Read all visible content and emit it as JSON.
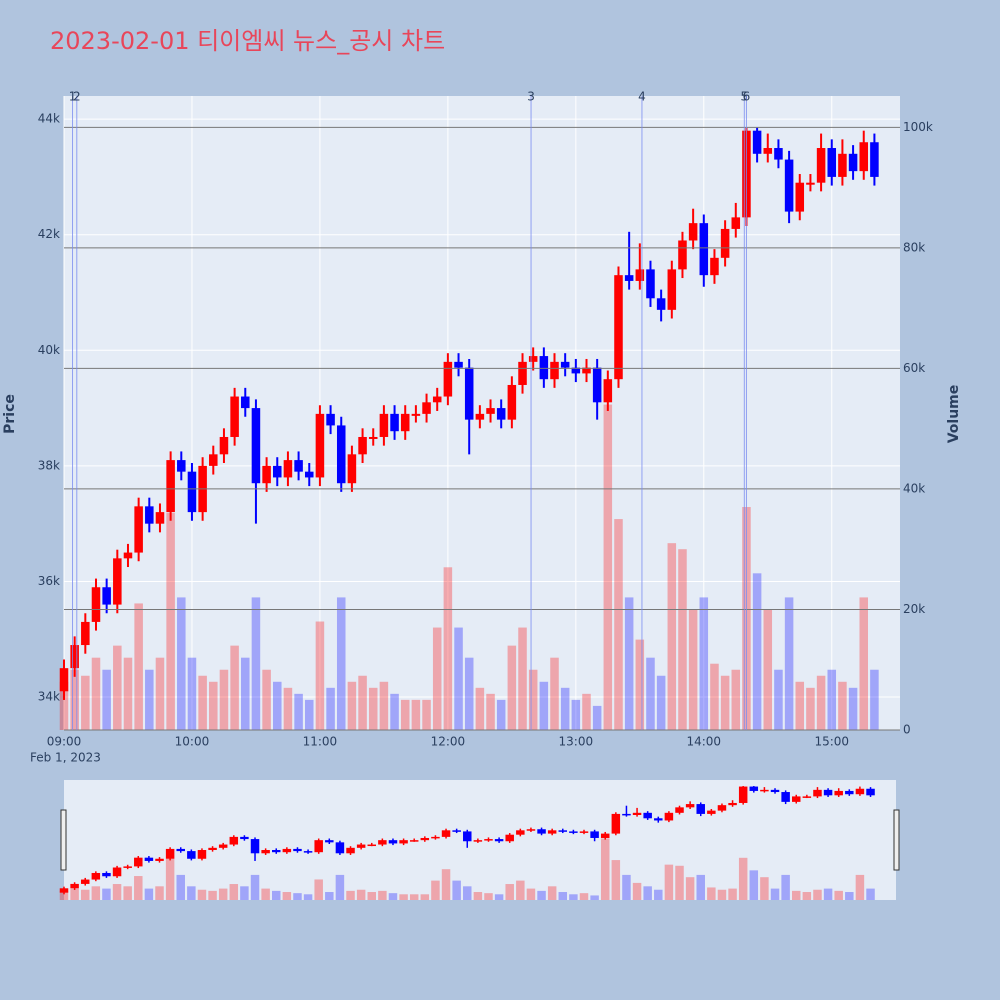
{
  "chart_data": {
    "type": "candlestick",
    "title": "2023-02-01 티이엠씨 뉴스_공시 차트",
    "y_label": "Price",
    "y2_label": "Volume",
    "x_date_label": "Feb 1, 2023",
    "increasing_color": "#ff0000",
    "decreasing_color": "#0000ff",
    "news_color": "#7b8cf0",
    "xlim": [
      "09:00",
      "15:32"
    ],
    "xticks": [
      "09:00",
      "10:00",
      "11:00",
      "12:00",
      "13:00",
      "14:00",
      "15:00"
    ],
    "ylim": [
      33430,
      44400
    ],
    "yticks": [
      {
        "value": 34000,
        "label": "34k"
      },
      {
        "value": 36000,
        "label": "36k"
      },
      {
        "value": 38000,
        "label": "38k"
      },
      {
        "value": 40000,
        "label": "40k"
      },
      {
        "value": 42000,
        "label": "42k"
      },
      {
        "value": 44000,
        "label": "44k"
      }
    ],
    "y2lim": [
      0,
      105200
    ],
    "y2ticks": [
      0,
      {
        "value": 20000,
        "label": "20k"
      },
      {
        "value": 40000,
        "label": "40k"
      },
      {
        "value": 60000,
        "label": "60k"
      },
      {
        "value": 80000,
        "label": "80k"
      },
      {
        "value": 100000,
        "label": "100k"
      }
    ],
    "x": [
      "09:00",
      "09:05",
      "09:10",
      "09:15",
      "09:20",
      "09:25",
      "09:30",
      "09:35",
      "09:40",
      "09:45",
      "09:50",
      "09:55",
      "10:00",
      "10:05",
      "10:10",
      "10:15",
      "10:20",
      "10:25",
      "10:30",
      "10:35",
      "10:40",
      "10:45",
      "10:50",
      "10:55",
      "11:00",
      "11:05",
      "11:10",
      "11:15",
      "11:20",
      "11:25",
      "11:30",
      "11:35",
      "11:40",
      "11:45",
      "11:50",
      "11:55",
      "12:00",
      "12:05",
      "12:10",
      "12:15",
      "12:20",
      "12:25",
      "12:30",
      "12:35",
      "12:40",
      "12:45",
      "12:50",
      "12:55",
      "13:00",
      "13:05",
      "13:10",
      "13:15",
      "13:20",
      "13:25",
      "13:30",
      "13:35",
      "13:40",
      "13:45",
      "13:50",
      "13:55",
      "14:00",
      "14:05",
      "14:10",
      "14:15",
      "14:20",
      "14:25",
      "14:30",
      "14:35",
      "14:40",
      "14:45",
      "14:50",
      "14:55",
      "15:00",
      "15:05",
      "15:10",
      "15:15",
      "15:20"
    ],
    "open": [
      34100,
      34500,
      34900,
      35300,
      35900,
      35600,
      36400,
      36500,
      37300,
      37000,
      37200,
      38100,
      37900,
      37200,
      38000,
      38200,
      38500,
      39200,
      39000,
      37700,
      38000,
      37800,
      38100,
      37900,
      37800,
      38900,
      38700,
      37700,
      38200,
      38500,
      38500,
      38900,
      38600,
      38900,
      38900,
      39100,
      39200,
      39800,
      39700,
      38800,
      38900,
      39000,
      38800,
      39400,
      39800,
      39900,
      39500,
      39800,
      39700,
      39600,
      39700,
      39100,
      39500,
      41300,
      41200,
      41400,
      40900,
      40700,
      41400,
      41900,
      42200,
      41300,
      41600,
      42100,
      42300,
      43800,
      43400,
      43500,
      43300,
      42400,
      42900,
      42900,
      43500,
      43000,
      43400,
      43100,
      43600
    ],
    "high": [
      34650,
      35050,
      35450,
      36050,
      36050,
      36550,
      36650,
      37450,
      37450,
      37350,
      38250,
      38250,
      38050,
      38150,
      38350,
      38650,
      39350,
      39350,
      39150,
      38150,
      38150,
      38250,
      38250,
      38050,
      39050,
      39050,
      38850,
      38350,
      38650,
      38650,
      39050,
      39050,
      39050,
      39050,
      39250,
      39350,
      39950,
      39950,
      39850,
      39050,
      39150,
      39150,
      39550,
      39950,
      40050,
      40050,
      39950,
      39950,
      39850,
      39850,
      39850,
      39650,
      41450,
      42050,
      41850,
      41550,
      41050,
      41550,
      42050,
      42450,
      42350,
      41750,
      42250,
      42550,
      43850,
      43850,
      43750,
      43650,
      43450,
      43050,
      43050,
      43750,
      43650,
      43650,
      43550,
      43800,
      43750
    ],
    "low": [
      33950,
      34350,
      34750,
      35150,
      35450,
      35450,
      36250,
      36350,
      36850,
      36850,
      37050,
      37750,
      37050,
      37050,
      37850,
      38050,
      38350,
      38850,
      37000,
      37550,
      37650,
      37650,
      37750,
      37650,
      37650,
      38550,
      37550,
      37550,
      38050,
      38350,
      38350,
      38450,
      38450,
      38750,
      38750,
      38950,
      39050,
      39550,
      38200,
      38650,
      38750,
      38650,
      38650,
      39250,
      39650,
      39350,
      39350,
      39550,
      39450,
      39450,
      38800,
      38950,
      39350,
      41050,
      41050,
      40750,
      40500,
      40550,
      41250,
      41750,
      41100,
      41150,
      41450,
      41950,
      42150,
      43250,
      43250,
      43150,
      42200,
      42250,
      42750,
      42750,
      42850,
      42850,
      42950,
      42950,
      42850
    ],
    "close": [
      34500,
      34900,
      35300,
      35900,
      35600,
      36400,
      36500,
      37300,
      37000,
      37200,
      38100,
      37900,
      37200,
      38000,
      38200,
      38500,
      39200,
      39000,
      37700,
      38000,
      37800,
      38100,
      37900,
      37800,
      38900,
      38700,
      37700,
      38200,
      38500,
      38500,
      38900,
      38600,
      38900,
      38900,
      39100,
      39200,
      39800,
      39700,
      38800,
      38900,
      39000,
      38800,
      39400,
      39800,
      39900,
      39500,
      39800,
      39700,
      39600,
      39700,
      39100,
      39500,
      41300,
      41200,
      41400,
      40900,
      40700,
      41400,
      41900,
      42200,
      41300,
      41600,
      42100,
      42300,
      43800,
      43400,
      43500,
      43300,
      42400,
      42900,
      42900,
      43500,
      43000,
      43400,
      43100,
      43600,
      43000
    ],
    "volume": [
      8000,
      10000,
      9000,
      12000,
      10000,
      14000,
      12000,
      21000,
      10000,
      12000,
      36000,
      22000,
      12000,
      9000,
      8000,
      10000,
      14000,
      12000,
      22000,
      10000,
      8000,
      7000,
      6000,
      5000,
      18000,
      7000,
      22000,
      8000,
      9000,
      7000,
      8000,
      6000,
      5000,
      5000,
      5000,
      17000,
      27000,
      17000,
      12000,
      7000,
      6000,
      5000,
      14000,
      17000,
      10000,
      8000,
      12000,
      7000,
      5000,
      6000,
      4000,
      54000,
      35000,
      22000,
      15000,
      12000,
      9000,
      31000,
      30000,
      20000,
      22000,
      11000,
      9000,
      10000,
      37000,
      26000,
      20000,
      10000,
      22000,
      8000,
      7000,
      9000,
      10000,
      8000,
      7000,
      22000,
      10000
    ],
    "news": [
      {
        "label": "1",
        "x": "09:04"
      },
      {
        "label": "2",
        "x": "09:06"
      },
      {
        "label": "3",
        "x": "12:39"
      },
      {
        "label": "4",
        "x": "13:31"
      },
      {
        "label": "5",
        "x": "14:19"
      },
      {
        "label": "6",
        "x": "14:20"
      }
    ]
  }
}
